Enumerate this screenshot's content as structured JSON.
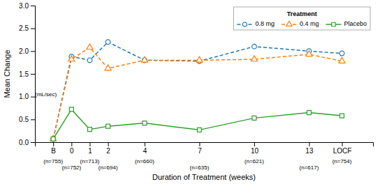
{
  "chart_data": {
    "type": "line",
    "xlabel": "Duration of Treatment (weeks)",
    "ylabel": "Mean Change",
    "x": [
      -1,
      0,
      1,
      2,
      4,
      7,
      10,
      13,
      14.8
    ],
    "xlim": [
      -2.0,
      16.5
    ],
    "xticks": [
      {
        "value": -1,
        "label": "B"
      },
      0,
      1,
      2,
      4,
      7,
      10,
      13,
      {
        "value": 14.8,
        "label": "LOCF"
      }
    ],
    "ylim": [
      0.0,
      3.0
    ],
    "yticks": [
      {
        "value": 0.0,
        "label": "0.0"
      },
      0.5,
      {
        "value": 1.0,
        "label": "1.0"
      },
      1.5,
      {
        "value": 2.0,
        "label": "2.0"
      },
      2.5,
      {
        "value": 3.0,
        "label": "3.0"
      }
    ],
    "series": [
      {
        "name": "0.8 mg",
        "marker": "circle",
        "line_style": "dashed",
        "values": [
          0.07,
          1.88,
          1.8,
          2.2,
          1.8,
          1.78,
          2.1,
          2.0,
          1.95
        ]
      },
      {
        "name": "0.4 mg",
        "marker": "triangle",
        "line_style": "dashed",
        "values": [
          0.07,
          1.82,
          2.08,
          1.62,
          1.8,
          1.8,
          1.82,
          1.93,
          1.78
        ]
      },
      {
        "name": "Placebo",
        "marker": "square",
        "line_style": "solid",
        "values": [
          0.07,
          0.72,
          0.28,
          0.35,
          0.42,
          0.27,
          0.53,
          0.65,
          0.58
        ]
      }
    ],
    "annotations": [
      {
        "text": "(n=755)",
        "x": -1
      },
      {
        "text": "(n=752)",
        "x": 0
      },
      {
        "text": "(n=713)",
        "x": 1
      },
      {
        "text": "(n=694)",
        "x": 2
      },
      {
        "text": "(n=660)",
        "x": 4
      },
      {
        "text": "(n=635)",
        "x": 7
      },
      {
        "text": "(n=621)",
        "x": 10
      },
      {
        "text": "(n=617)",
        "x": 13
      },
      {
        "text": "(n=754)",
        "x": 14.8
      },
      {
        "text": "(mL/sec)",
        "x": -2.0,
        "y": 1.05
      }
    ],
    "legend_title": "Treatment",
    "legend": "upper right",
    "grid": false
  }
}
